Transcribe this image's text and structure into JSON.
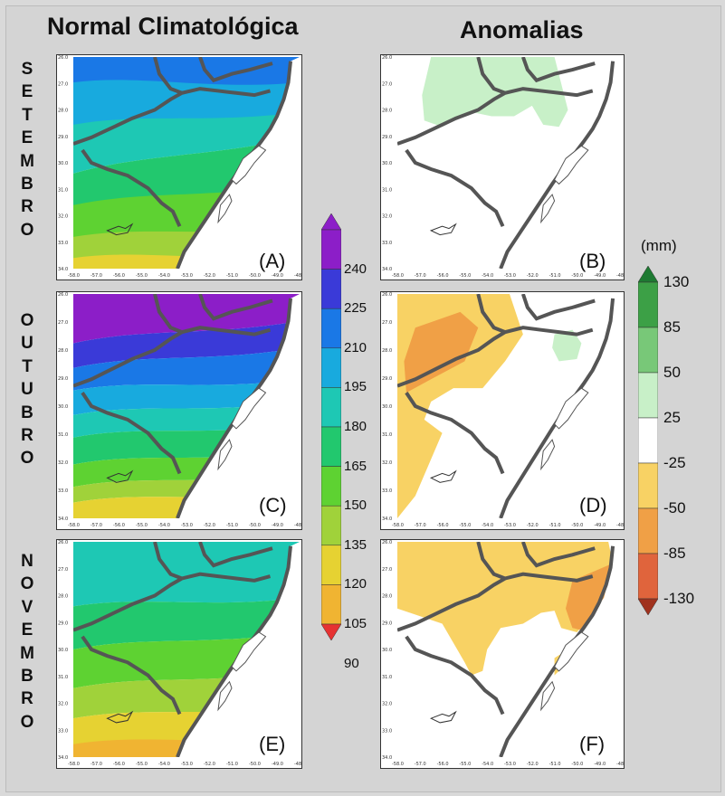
{
  "headers": {
    "left": "Normal Climatológica",
    "right": "Anomalias"
  },
  "months": [
    {
      "name": "SETEMBRO",
      "letters": [
        "S",
        "E",
        "T",
        "E",
        "M",
        "B",
        "R",
        "O"
      ]
    },
    {
      "name": "OUTUBRO",
      "letters": [
        "O",
        "U",
        "T",
        "U",
        "B",
        "R",
        "O"
      ]
    },
    {
      "name": "NOVEMBRO",
      "letters": [
        "N",
        "O",
        "V",
        "E",
        "M",
        "B",
        "R",
        "O"
      ]
    }
  ],
  "panels": {
    "A": "(A)",
    "B": "(B)",
    "C": "(C)",
    "D": "(D)",
    "E": "(E)",
    "F": "(F)"
  },
  "axis_ticks": {
    "lat": [
      "26.0",
      "27.0",
      "28.0",
      "29.0",
      "30.0",
      "31.0",
      "32.0",
      "33.0",
      "34.0"
    ],
    "lon": [
      "-58.0",
      "-57.0",
      "-56.0",
      "-55.0",
      "-54.0",
      "-53.0",
      "-52.0",
      "-51.0",
      "-50.0",
      "-49.0",
      "-48.0"
    ]
  },
  "normal_colorbar": {
    "labels": [
      "240",
      "225",
      "210",
      "195",
      "180",
      "165",
      "150",
      "135",
      "120",
      "105",
      "90"
    ],
    "colors": [
      "#8c1ec8",
      "#3a3ad8",
      "#1a78e6",
      "#18aade",
      "#1ec8b4",
      "#22c86e",
      "#5ed232",
      "#a0d23a",
      "#e6d232",
      "#f0b432",
      "#f07832",
      "#e63232"
    ]
  },
  "anomaly_colorbar": {
    "unit": "(mm)",
    "labels": [
      "130",
      "85",
      "50",
      "25",
      "-25",
      "-50",
      "-85",
      "-130"
    ],
    "colors": [
      "#1e7a32",
      "#3ca046",
      "#78c878",
      "#c8f0c8",
      "#ffffff",
      "#f8d264",
      "#f0a046",
      "#e0643c",
      "#a0321e"
    ]
  }
}
